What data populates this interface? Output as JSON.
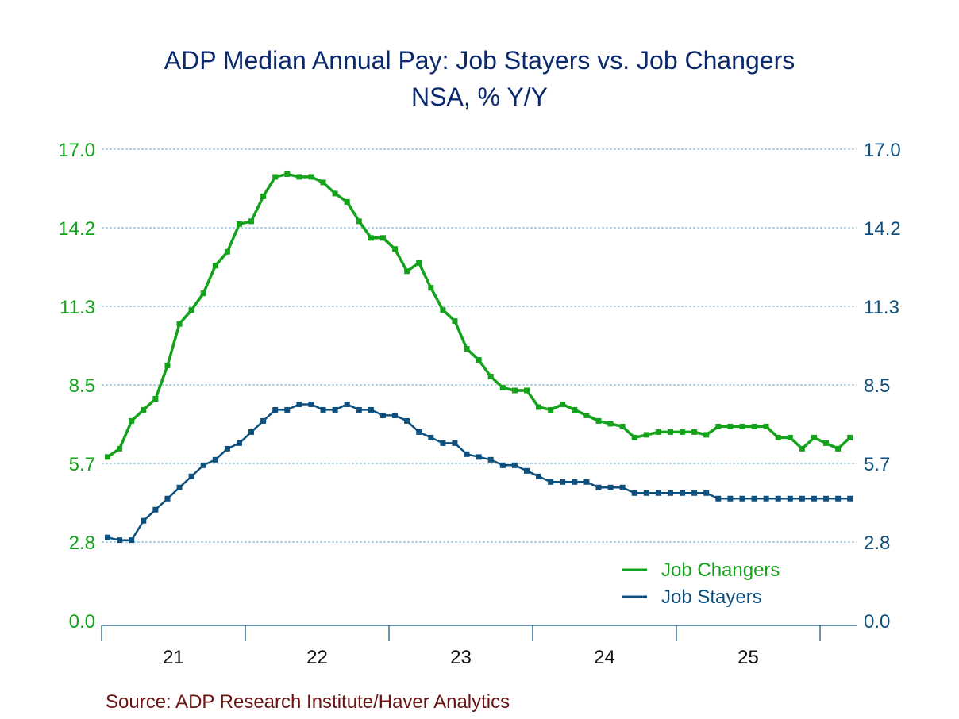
{
  "chart_data": {
    "type": "line",
    "title": "ADP Median Annual Pay: Job Stayers vs. Job Changers",
    "subtitle": "NSA, % Y/Y",
    "xlabel": "",
    "ylabel": "",
    "ylim": [
      0,
      17
    ],
    "y_ticks": [
      "0.0",
      "2.8",
      "5.7",
      "8.5",
      "11.3",
      "14.2",
      "17.0"
    ],
    "y_tick_values": [
      0,
      2.833,
      5.667,
      8.5,
      11.333,
      14.167,
      17
    ],
    "x_tick_labels": [
      "21",
      "22",
      "23",
      "24",
      "25"
    ],
    "x_start": "2021-01",
    "x_end": "2026-03",
    "grid": true,
    "legend_position": "bottom-right",
    "series": [
      {
        "name": "Job Changers",
        "color": "#13a21a",
        "values": [
          5.9,
          6.2,
          7.2,
          7.6,
          8.0,
          9.2,
          10.7,
          11.2,
          11.8,
          12.8,
          13.3,
          14.3,
          14.4,
          15.3,
          16.0,
          16.1,
          16.0,
          16.0,
          15.8,
          15.4,
          15.1,
          14.4,
          13.8,
          13.8,
          13.4,
          12.6,
          12.9,
          12.0,
          11.2,
          10.8,
          9.8,
          9.4,
          8.8,
          8.4,
          8.3,
          8.3,
          7.7,
          7.6,
          7.8,
          7.6,
          7.4,
          7.2,
          7.1,
          7.0,
          6.6,
          6.7,
          6.8,
          6.8,
          6.8,
          6.8,
          6.7,
          7.0,
          7.0,
          7.0,
          7.0,
          7.0,
          6.6,
          6.6,
          6.2,
          6.6,
          6.4,
          6.2,
          6.6
        ]
      },
      {
        "name": "Job Stayers",
        "color": "#0d4f7d",
        "values": [
          3.0,
          2.9,
          2.9,
          3.6,
          4.0,
          4.4,
          4.8,
          5.2,
          5.6,
          5.8,
          6.2,
          6.4,
          6.8,
          7.2,
          7.6,
          7.6,
          7.8,
          7.8,
          7.6,
          7.6,
          7.8,
          7.6,
          7.6,
          7.4,
          7.4,
          7.2,
          6.8,
          6.6,
          6.4,
          6.4,
          6.0,
          5.9,
          5.8,
          5.6,
          5.6,
          5.4,
          5.2,
          5.0,
          5.0,
          5.0,
          5.0,
          4.8,
          4.8,
          4.8,
          4.6,
          4.6,
          4.6,
          4.6,
          4.6,
          4.6,
          4.6,
          4.4,
          4.4,
          4.4,
          4.4,
          4.4,
          4.4,
          4.4,
          4.4,
          4.4,
          4.4,
          4.4,
          4.4
        ]
      }
    ],
    "source": "Source:  ADP Research Institute/Haver Analytics"
  },
  "colors": {
    "title": "#0b2a6e",
    "left_axis": "#13a21a",
    "right_axis": "#0d4f7d",
    "grid": "#6fa9c8",
    "source": "#6b1414"
  }
}
